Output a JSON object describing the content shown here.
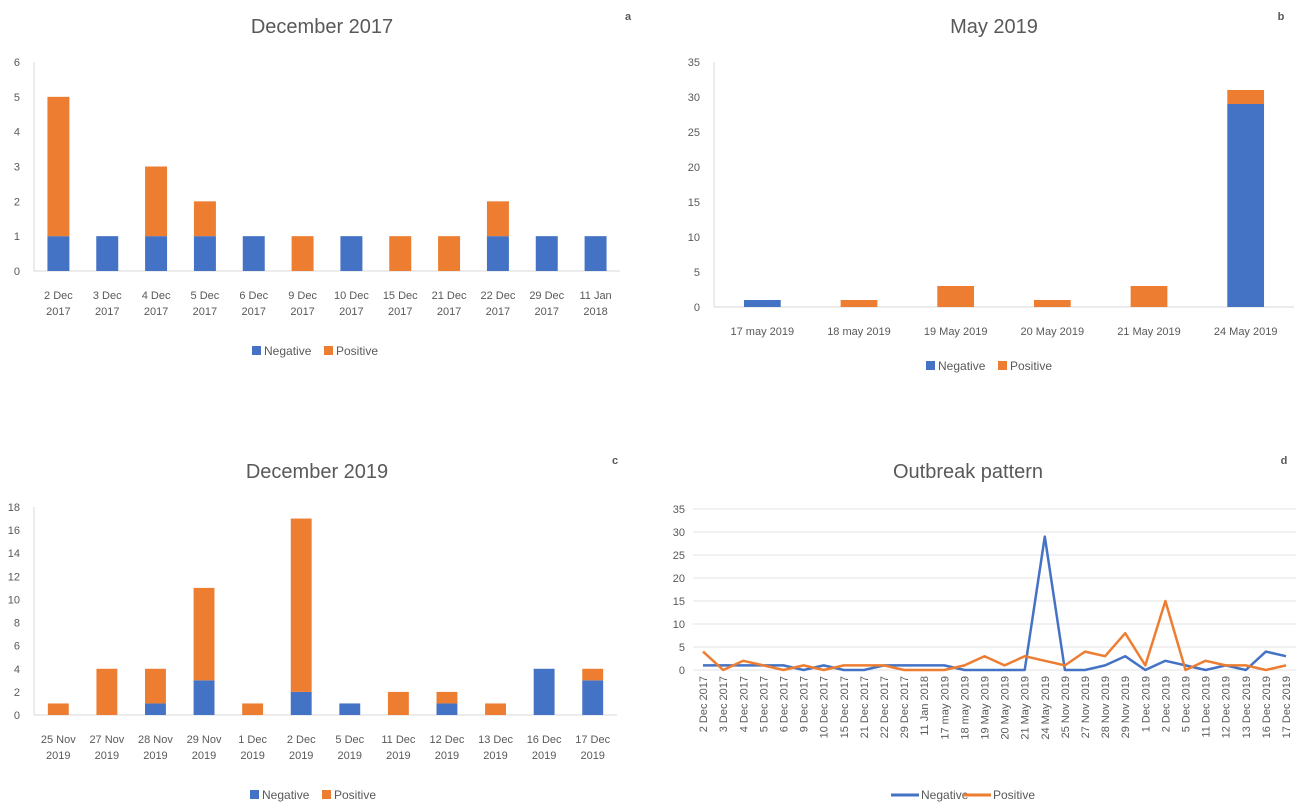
{
  "colors": {
    "negative": "#4472C4",
    "positive": "#ED7D31"
  },
  "legend": {
    "negative": "Negative",
    "positive": "Positive"
  },
  "chart_data": [
    {
      "type": "bar",
      "stacked": true,
      "title": "December 2017",
      "panel_label": "a",
      "categories": [
        [
          "2 Dec",
          "2017"
        ],
        [
          "3 Dec",
          "2017"
        ],
        [
          "4 Dec",
          "2017"
        ],
        [
          "5 Dec",
          "2017"
        ],
        [
          "6 Dec",
          "2017"
        ],
        [
          "9 Dec",
          "2017"
        ],
        [
          "10 Dec",
          "2017"
        ],
        [
          "15 Dec",
          "2017"
        ],
        [
          "21 Dec",
          "2017"
        ],
        [
          "22 Dec",
          "2017"
        ],
        [
          "29 Dec",
          "2017"
        ],
        [
          "11 Jan",
          "2018"
        ]
      ],
      "series": [
        {
          "name": "Negative",
          "values": [
            1,
            1,
            1,
            1,
            1,
            0,
            1,
            0,
            0,
            1,
            1,
            1
          ]
        },
        {
          "name": "Positive",
          "values": [
            4,
            0,
            2,
            1,
            0,
            1,
            0,
            1,
            1,
            1,
            0,
            0
          ]
        }
      ],
      "ylim": [
        0,
        6
      ],
      "yticks": [
        0,
        1,
        2,
        3,
        4,
        5,
        6
      ],
      "legend_position": "bottom"
    },
    {
      "type": "bar",
      "stacked": true,
      "title": "May 2019",
      "panel_label": "b",
      "categories": [
        [
          "17 may 2019"
        ],
        [
          "18 may 2019"
        ],
        [
          "19 May 2019"
        ],
        [
          "20 May 2019"
        ],
        [
          "21 May 2019"
        ],
        [
          "24 May 2019"
        ]
      ],
      "series": [
        {
          "name": "Negative",
          "values": [
            1,
            0,
            0,
            0,
            0,
            29
          ]
        },
        {
          "name": "Positive",
          "values": [
            0,
            1,
            3,
            1,
            3,
            2
          ]
        }
      ],
      "ylim": [
        0,
        35
      ],
      "yticks": [
        0,
        5,
        10,
        15,
        20,
        25,
        30,
        35
      ],
      "legend_position": "bottom"
    },
    {
      "type": "bar",
      "stacked": true,
      "title": "December 2019",
      "panel_label": "c",
      "categories": [
        [
          "25 Nov",
          "2019"
        ],
        [
          "27 Nov",
          "2019"
        ],
        [
          "28 Nov",
          "2019"
        ],
        [
          "29 Nov",
          "2019"
        ],
        [
          "1 Dec",
          "2019"
        ],
        [
          "2  Dec",
          "2019"
        ],
        [
          "5 Dec",
          "2019"
        ],
        [
          "11 Dec",
          "2019"
        ],
        [
          "12 Dec",
          "2019"
        ],
        [
          "13 Dec",
          "2019"
        ],
        [
          "16 Dec",
          "2019"
        ],
        [
          "17 Dec",
          "2019"
        ]
      ],
      "series": [
        {
          "name": "Negative",
          "values": [
            0,
            0,
            1,
            3,
            0,
            2,
            1,
            0,
            1,
            0,
            4,
            3
          ]
        },
        {
          "name": "Positive",
          "values": [
            1,
            4,
            3,
            8,
            1,
            15,
            0,
            2,
            1,
            1,
            0,
            1
          ]
        }
      ],
      "ylim": [
        0,
        18
      ],
      "yticks": [
        0,
        2,
        4,
        6,
        8,
        10,
        12,
        14,
        16,
        18
      ],
      "legend_position": "bottom"
    },
    {
      "type": "line",
      "title": "Outbreak pattern",
      "panel_label": "d",
      "categories": [
        "2 Dec 2017",
        "3 Dec 2017",
        "4 Dec 2017",
        "5 Dec 2017",
        "6 Dec 2017",
        "9 Dec 2017",
        "10 Dec 2017",
        "15 Dec 2017",
        "21 Dec 2017",
        "22 Dec 2017",
        "29 Dec 2017",
        "11 Jan 2018",
        "17 may 2019",
        "18 may 2019",
        "19 May 2019",
        "20 May 2019",
        "21 May 2019",
        "24 May 2019",
        "25 Nov 2019",
        "27 Nov 2019",
        "28 Nov 2019",
        "29 Nov 2019",
        "1 Dec 2019",
        "2 Dec 2019",
        "5 Dec 2019",
        "11 Dec 2019",
        "12 Dec 2019",
        "13 Dec 2019",
        "16 Dec 2019",
        "17 Dec 2019"
      ],
      "series": [
        {
          "name": "Negative",
          "values": [
            1,
            1,
            1,
            1,
            1,
            0,
            1,
            0,
            0,
            1,
            1,
            1,
            1,
            0,
            0,
            0,
            0,
            29,
            0,
            0,
            1,
            3,
            0,
            2,
            1,
            0,
            1,
            0,
            4,
            3
          ]
        },
        {
          "name": "Positive",
          "values": [
            4,
            0,
            2,
            1,
            0,
            1,
            0,
            1,
            1,
            1,
            0,
            0,
            0,
            1,
            3,
            1,
            3,
            2,
            1,
            4,
            3,
            8,
            1,
            15,
            0,
            2,
            1,
            1,
            0,
            1
          ]
        }
      ],
      "ylim": [
        0,
        35
      ],
      "yticks": [
        0,
        5,
        10,
        15,
        20,
        25,
        30,
        35
      ],
      "legend_position": "bottom"
    }
  ]
}
